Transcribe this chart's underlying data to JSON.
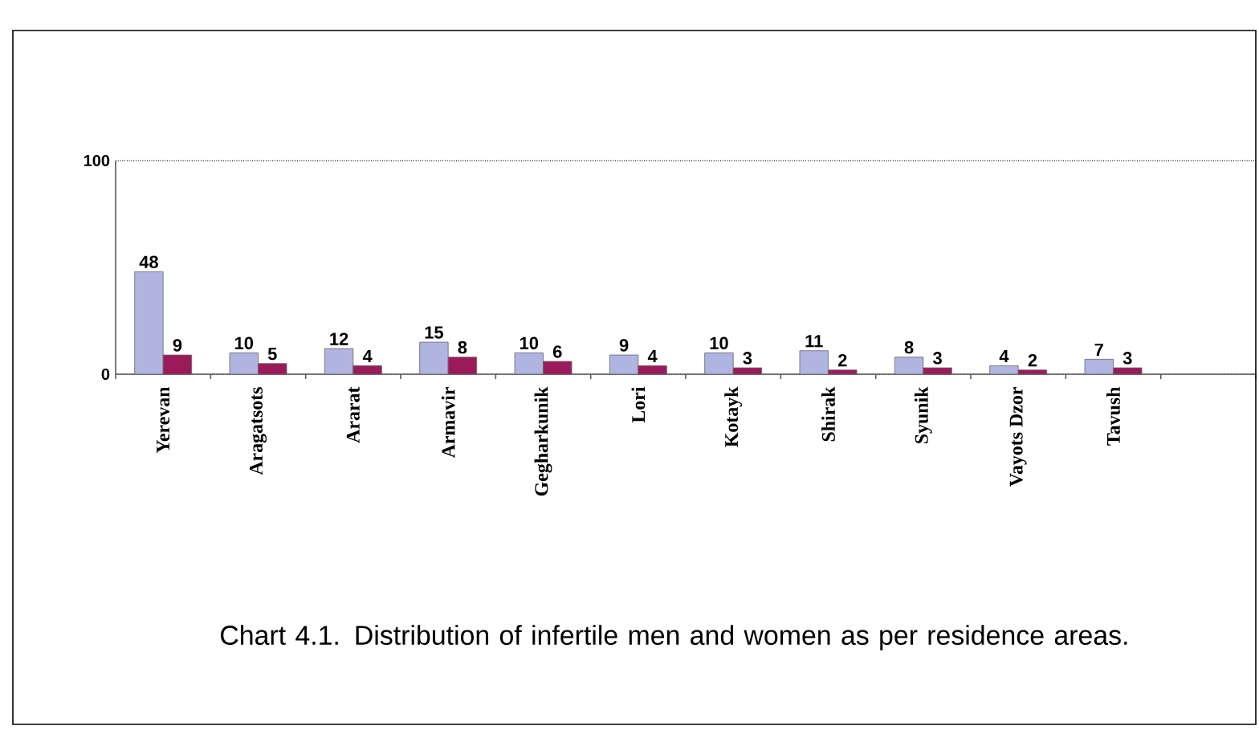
{
  "chart_data": {
    "type": "bar",
    "categories": [
      "Yerevan",
      "Aragatsots",
      "Ararat",
      "Armavir",
      "Gegharkunik",
      "Lori",
      "Kotayk",
      "Shirak",
      "Syunik",
      "Vayots Dzor",
      "Tavush"
    ],
    "series": [
      {
        "color": "#b0b4e0",
        "values": [
          48,
          10,
          12,
          15,
          10,
          9,
          10,
          11,
          8,
          4,
          7
        ]
      },
      {
        "color": "#9b1b5a",
        "values": [
          9,
          5,
          4,
          8,
          6,
          4,
          3,
          2,
          3,
          2,
          3
        ]
      }
    ],
    "ylim": [
      0,
      100
    ],
    "yticks": [
      0,
      100
    ],
    "grid": "y",
    "line_style": "dotted",
    "data_labels": true,
    "annotations": [
      "Chart 4.1. Distribution of infertile men and women as per residence areas."
    ]
  }
}
